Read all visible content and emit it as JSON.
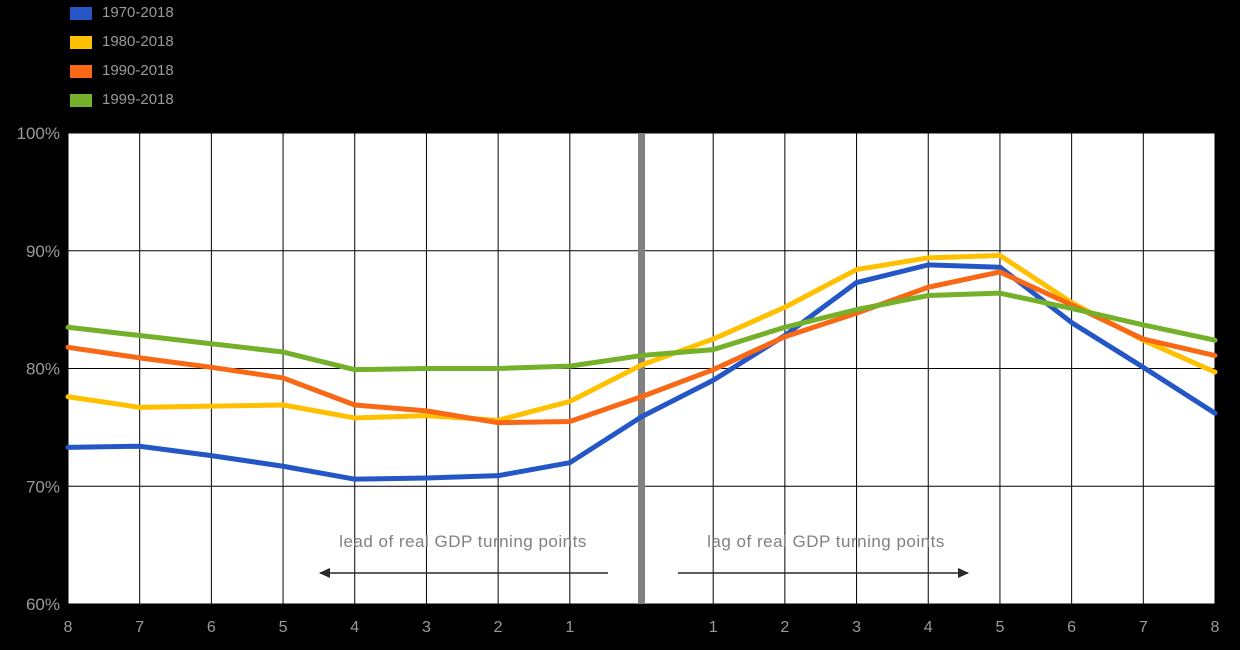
{
  "legend": {
    "items": [
      {
        "label": "1970-2018",
        "color": "#2457c5"
      },
      {
        "label": "1980-2018",
        "color": "#ffc000"
      },
      {
        "label": "1990-2018",
        "color": "#f96815"
      },
      {
        "label": "1999-2018",
        "color": "#74b029"
      }
    ]
  },
  "chart_data": {
    "type": "line",
    "title": "",
    "xlabel": "",
    "ylabel": "",
    "xlim": [
      -8,
      8
    ],
    "ylim": [
      60,
      100
    ],
    "grid": true,
    "legend_position": "top-left",
    "x": [
      -8,
      -7,
      -6,
      -5,
      -4,
      -3,
      -2,
      -1,
      0,
      1,
      2,
      3,
      4,
      5,
      6,
      7,
      8
    ],
    "xtick_labels": [
      "8",
      "7",
      "6",
      "5",
      "4",
      "3",
      "2",
      "1",
      "",
      "1",
      "2",
      "3",
      "4",
      "5",
      "6",
      "7",
      "8"
    ],
    "yticks": [
      {
        "value": 100,
        "label": "100%"
      },
      {
        "value": 90,
        "label": "90%"
      },
      {
        "value": 80,
        "label": "80%"
      },
      {
        "value": 70,
        "label": "70%"
      },
      {
        "value": 60,
        "label": "60%"
      }
    ],
    "series": [
      {
        "name": "1970-2018",
        "color": "#2457c5",
        "values": [
          73.3,
          73.4,
          72.6,
          71.7,
          70.6,
          70.7,
          70.9,
          72.0,
          75.9,
          79.0,
          82.8,
          87.3,
          88.8,
          88.6,
          83.9,
          80.1,
          76.2
        ]
      },
      {
        "name": "1980-2018",
        "color": "#ffc000",
        "values": [
          77.6,
          76.7,
          76.8,
          76.9,
          75.8,
          76.0,
          75.6,
          77.2,
          80.3,
          82.5,
          85.2,
          88.4,
          89.4,
          89.6,
          85.6,
          82.4,
          79.7
        ]
      },
      {
        "name": "1990-2018",
        "color": "#f96815",
        "values": [
          81.8,
          80.9,
          80.1,
          79.2,
          76.9,
          76.4,
          75.4,
          75.5,
          77.6,
          79.9,
          82.7,
          84.7,
          86.9,
          88.2,
          85.4,
          82.5,
          81.1
        ]
      },
      {
        "name": "1999-2018",
        "color": "#74b029",
        "values": [
          83.5,
          82.8,
          82.1,
          81.4,
          79.9,
          80.0,
          80.0,
          80.2,
          81.1,
          81.6,
          83.5,
          85.0,
          86.2,
          86.4,
          85.1,
          83.7,
          82.4
        ]
      }
    ],
    "annotations": [
      {
        "text": "lead of real GDP turning points",
        "side": "left"
      },
      {
        "text": "lag of real GDP turning points",
        "side": "right"
      }
    ],
    "zero_line": {
      "x": 0,
      "color": "#808080",
      "width": 7
    }
  },
  "colors": {
    "background": "#000000",
    "plot_background": "#ffffff",
    "grid": "#000000",
    "label_text": "#9a9a9a",
    "annotation_text": "#818181",
    "arrow": "#2a2a2a"
  }
}
